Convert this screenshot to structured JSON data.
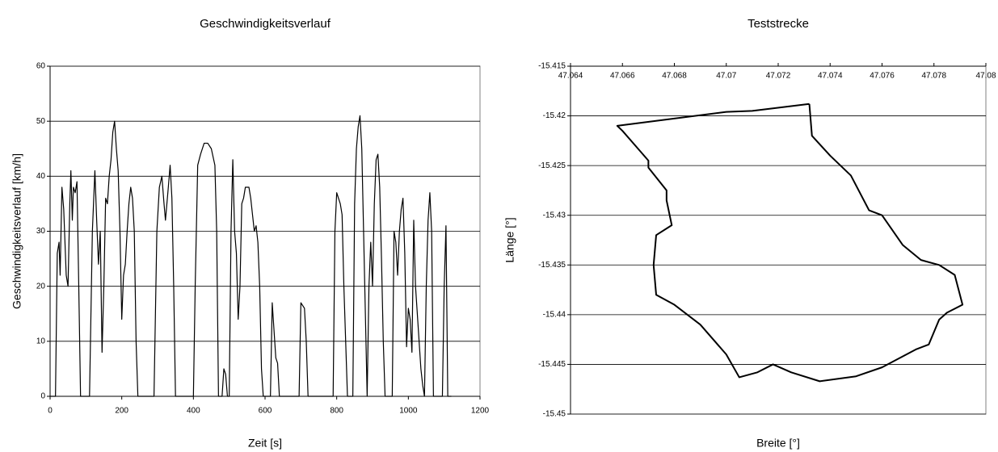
{
  "chart_data": [
    {
      "type": "line",
      "title": "Geschwindigkeitsverlauf",
      "x_label": "Zeit [s]",
      "y_label": "Geschwindigkeitsverlauf [km/h]",
      "xlim": [
        0,
        1200
      ],
      "xticks": [
        0,
        200,
        400,
        600,
        800,
        1000,
        1200
      ],
      "ylim": [
        0,
        60
      ],
      "yticks": [
        0,
        10,
        20,
        30,
        40,
        50,
        60
      ],
      "grid": true,
      "xaxis_position": "bottom",
      "x": [
        0,
        15,
        20,
        25,
        28,
        33,
        38,
        45,
        50,
        55,
        58,
        62,
        65,
        70,
        75,
        80,
        85,
        110,
        118,
        125,
        130,
        135,
        140,
        145,
        150,
        155,
        160,
        165,
        170,
        175,
        180,
        185,
        190,
        195,
        200,
        205,
        210,
        215,
        220,
        225,
        230,
        235,
        240,
        245,
        290,
        298,
        305,
        312,
        318,
        322,
        330,
        335,
        340,
        345,
        350,
        400,
        405,
        412,
        420,
        430,
        440,
        450,
        460,
        465,
        470,
        480,
        485,
        490,
        495,
        500,
        505,
        510,
        515,
        520,
        525,
        530,
        535,
        540,
        545,
        555,
        560,
        565,
        570,
        575,
        580,
        585,
        590,
        595,
        615,
        620,
        625,
        630,
        635,
        640,
        695,
        700,
        710,
        715,
        720,
        790,
        795,
        800,
        810,
        815,
        820,
        825,
        830,
        845,
        850,
        855,
        860,
        865,
        870,
        875,
        880,
        885,
        890,
        895,
        900,
        905,
        910,
        915,
        920,
        925,
        930,
        935,
        955,
        960,
        965,
        970,
        975,
        980,
        985,
        990,
        995,
        1000,
        1005,
        1010,
        1015,
        1020,
        1025,
        1030,
        1035,
        1040,
        1045,
        1050,
        1055,
        1060,
        1065,
        1070,
        1095,
        1100,
        1105,
        1110,
        1120
      ],
      "series": [
        {
          "color": "#000000",
          "values": [
            0,
            0,
            26,
            28,
            22,
            38,
            34,
            22,
            20,
            35,
            41,
            32,
            38,
            37,
            39,
            20,
            0,
            0,
            30,
            41,
            32,
            24,
            30,
            8,
            20,
            36,
            35,
            40,
            43,
            48,
            50,
            45,
            41,
            30,
            14,
            22,
            24,
            30,
            35,
            38,
            36,
            30,
            10,
            0,
            0,
            30,
            38,
            40,
            35,
            32,
            38,
            42,
            36,
            20,
            0,
            0,
            20,
            42,
            44,
            46,
            46,
            45,
            42,
            30,
            0,
            0,
            5,
            4,
            0,
            0,
            30,
            43,
            30,
            26,
            14,
            20,
            35,
            36,
            38,
            38,
            36,
            33,
            30,
            31,
            28,
            20,
            5,
            0,
            0,
            17,
            12,
            7,
            6,
            0,
            0,
            17,
            16,
            10,
            0,
            0,
            30,
            37,
            35,
            33,
            20,
            10,
            0,
            0,
            35,
            45,
            49,
            51,
            45,
            30,
            15,
            0,
            20,
            28,
            20,
            35,
            43,
            44,
            38,
            25,
            10,
            0,
            0,
            30,
            28,
            22,
            30,
            34,
            36,
            26,
            9,
            16,
            14,
            8,
            32,
            20,
            15,
            10,
            5,
            2,
            0,
            20,
            32,
            37,
            30,
            0,
            0,
            20,
            31,
            0,
            0
          ]
        }
      ]
    },
    {
      "type": "line",
      "title": "Teststrecke",
      "x_label": "Breite [°]",
      "y_label": "Länge [°]",
      "xlim": [
        47.064,
        47.08
      ],
      "xticks": [
        47.064,
        47.066,
        47.068,
        47.07,
        47.072,
        47.074,
        47.076,
        47.078,
        47.08
      ],
      "ylim": [
        -15.45,
        -15.415
      ],
      "yticks": [
        -15.45,
        -15.445,
        -15.44,
        -15.435,
        -15.43,
        -15.425,
        -15.42,
        -15.415
      ],
      "grid": true,
      "xaxis_position": "top",
      "x": [
        47.0732,
        47.071,
        47.07,
        47.0658,
        47.066,
        47.0665,
        47.067,
        47.067,
        47.0677,
        47.0677,
        47.0679,
        47.0673,
        47.0672,
        47.0673,
        47.068,
        47.069,
        47.07,
        47.0705,
        47.0712,
        47.0718,
        47.0725,
        47.0736,
        47.075,
        47.076,
        47.0773,
        47.0778,
        47.0782,
        47.0785,
        47.0791,
        47.0788,
        47.0782,
        47.0775,
        47.0768,
        47.076,
        47.0755,
        47.0748,
        47.074,
        47.0733,
        47.0732
      ],
      "series": [
        {
          "color": "#000000",
          "values": [
            -15.4188,
            -15.4195,
            -15.4196,
            -15.421,
            -15.4215,
            -15.423,
            -15.4245,
            -15.4252,
            -15.4275,
            -15.4285,
            -15.431,
            -15.432,
            -15.435,
            -15.438,
            -15.439,
            -15.441,
            -15.444,
            -15.4463,
            -15.4458,
            -15.445,
            -15.4458,
            -15.4467,
            -15.4462,
            -15.4453,
            -15.4435,
            -15.443,
            -15.4405,
            -15.4398,
            -15.439,
            -15.436,
            -15.435,
            -15.4345,
            -15.433,
            -15.43,
            -15.4295,
            -15.426,
            -15.424,
            -15.422,
            -15.4188
          ]
        }
      ]
    }
  ]
}
